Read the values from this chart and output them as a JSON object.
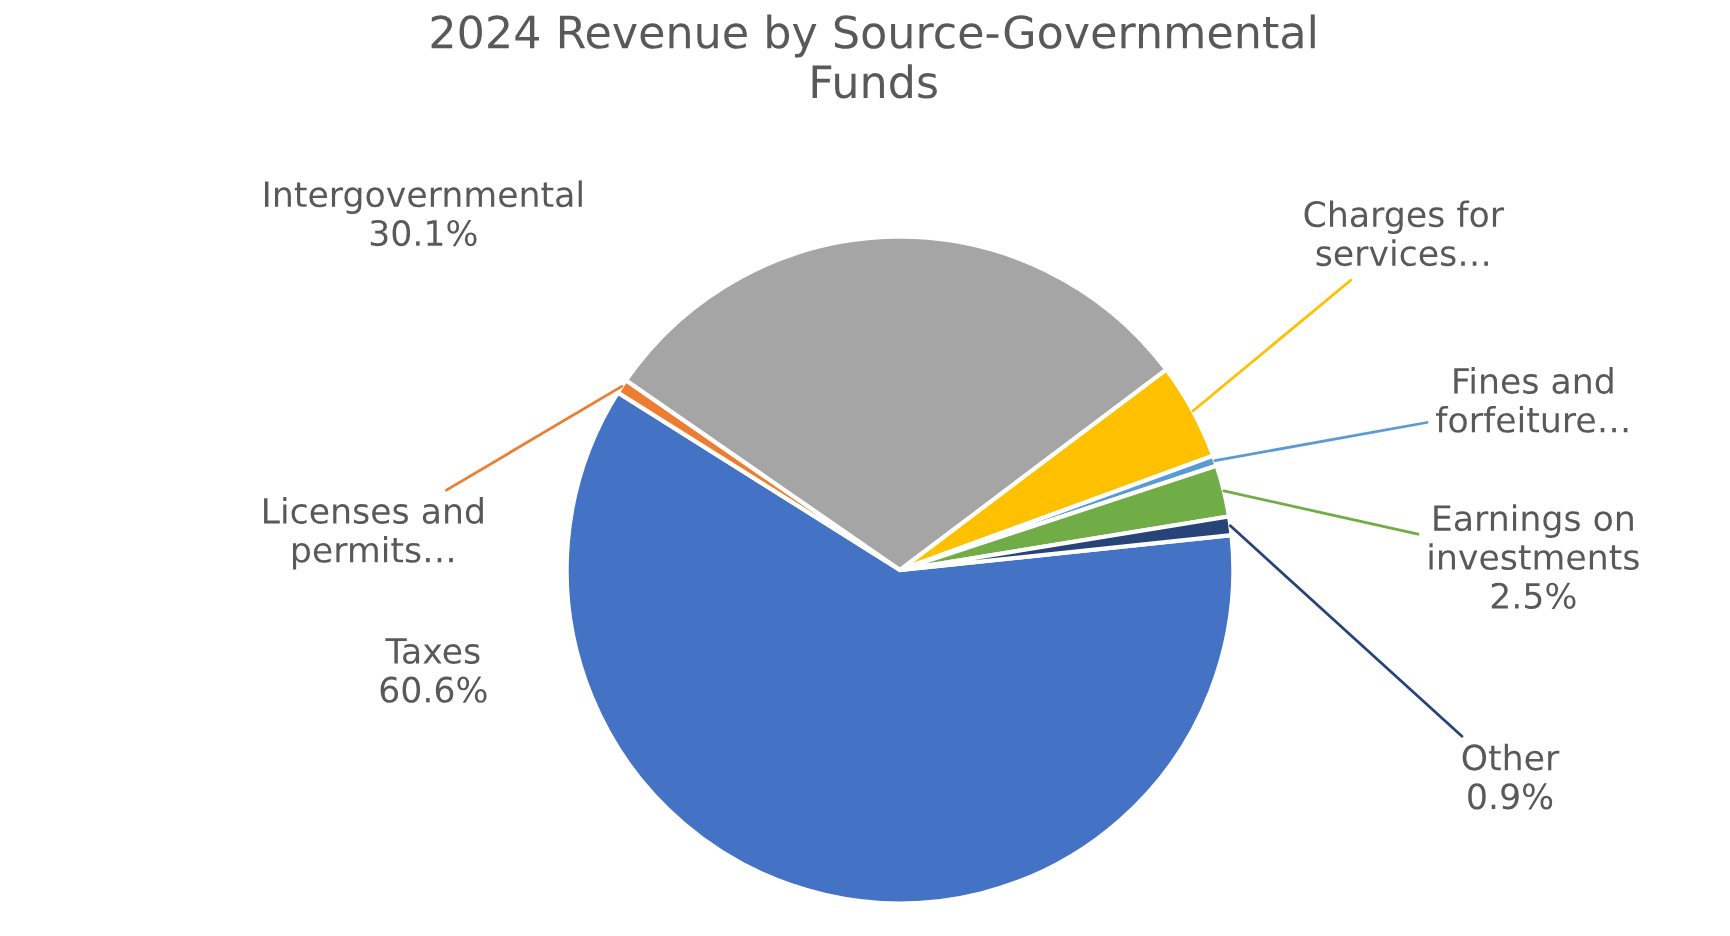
{
  "chart_data": {
    "type": "pie",
    "title": "2024 Revenue by Source-Governmental\nFunds",
    "categories": [
      "Taxes",
      "Licenses and\npermits…",
      "Intergovernmental",
      "Charges for\nservices…",
      "Fines and\nforfeiture…",
      "Earnings on\ninvestments",
      "Other"
    ],
    "values": [
      60.6,
      0.7,
      30.1,
      4.7,
      0.5,
      2.5,
      0.9
    ],
    "value_labels": [
      "60.6%",
      null,
      "30.1%",
      null,
      null,
      "2.5%",
      "0.9%"
    ],
    "colors": [
      "#4472c4",
      "#ed7d31",
      "#a5a5a5",
      "#ffc000",
      "#5b9bd5",
      "#70ad47",
      "#264478"
    ],
    "legend": false
  }
}
